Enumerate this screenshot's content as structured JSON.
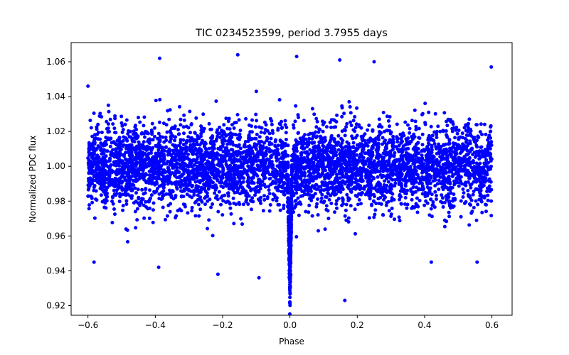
{
  "chart_data": {
    "type": "scatter",
    "title": "TIC 0234523599, period 3.7955 days",
    "xlabel": "Phase",
    "ylabel": "Normalized PDC flux",
    "xlim": [
      -0.65,
      0.66
    ],
    "ylim": [
      0.9145,
      1.071
    ],
    "x_ticks": [
      -0.6,
      -0.4,
      -0.2,
      0.0,
      0.2,
      0.4,
      0.6
    ],
    "x_tick_labels": [
      "−0.6",
      "−0.4",
      "−0.2",
      "0.0",
      "0.2",
      "0.4",
      "0.6"
    ],
    "y_ticks": [
      0.92,
      0.94,
      0.96,
      0.98,
      1.0,
      1.02,
      1.04,
      1.06
    ],
    "y_tick_labels": [
      "0.92",
      "0.94",
      "0.96",
      "0.98",
      "1.00",
      "1.02",
      "1.04",
      "1.06"
    ],
    "grid": false,
    "marker_color": "#0000ff",
    "series": [
      {
        "name": "PDC flux",
        "phase_range": [
          -0.6,
          0.6
        ],
        "baseline_flux": 1.0,
        "flux_scatter_sigma": 0.012,
        "transit_center_phase": 0.0,
        "transit_halfwidth_phase": 0.01,
        "transit_min_flux": 0.925,
        "outliers": [
          {
            "x": -0.387,
            "y": 1.062
          },
          {
            "x": -0.155,
            "y": 1.064
          },
          {
            "x": 0.02,
            "y": 1.063
          },
          {
            "x": 0.148,
            "y": 1.061
          },
          {
            "x": 0.25,
            "y": 1.06
          },
          {
            "x": -0.582,
            "y": 0.945
          },
          {
            "x": -0.39,
            "y": 0.942
          },
          {
            "x": -0.214,
            "y": 0.938
          },
          {
            "x": -0.092,
            "y": 0.936
          },
          {
            "x": 0.163,
            "y": 0.923
          },
          {
            "x": 0.42,
            "y": 0.945
          },
          {
            "x": 0.556,
            "y": 0.945
          },
          {
            "x": -0.6,
            "y": 1.046
          },
          {
            "x": 0.598,
            "y": 1.057
          }
        ]
      }
    ]
  }
}
